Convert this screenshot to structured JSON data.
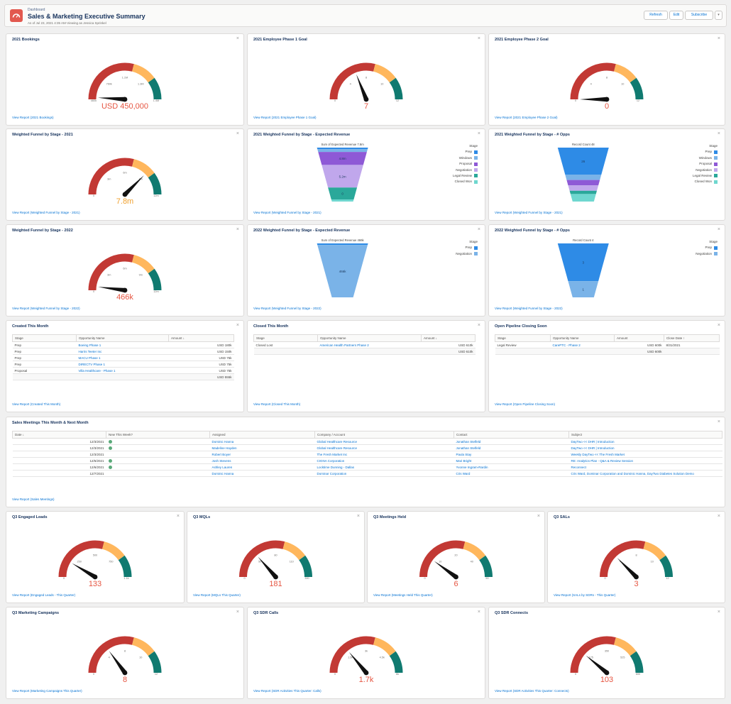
{
  "header": {
    "subtitle": "Dashboard",
    "title": "Sales & Marketing Executive Summary",
    "meta": "As of Jul 23, 2021 4:35 AM·Viewing as Jessica Sprinkel",
    "refresh": "Refresh",
    "edit": "Edit",
    "subscribe": "Subscribe",
    "more_icon": "chevron-down-icon"
  },
  "colors": {
    "red": "#c23934",
    "yellow": "#ffb75d",
    "teal": "#107a70",
    "needle": "#111111",
    "link": "#0070d2",
    "value_red": "#e65541",
    "value_orange": "#f0a12f"
  },
  "gauges": {
    "g1": {
      "title": "2021 Bookings",
      "ticks": [
        "460k",
        "760k",
        "1.1M",
        "1.3M",
        "1.4M"
      ],
      "value": "USD 450,000",
      "link": "View Report (2021 Bookings)",
      "needle": 0.02,
      "color": "red"
    },
    "g2": {
      "title": "2021 Employee Phase 1 Goal",
      "ticks": [
        "0",
        "4",
        "8",
        "10",
        "12"
      ],
      "value": "7",
      "link": "View Report (2021 Employee Phase 1 Goal)",
      "needle": 0.38,
      "color": "red"
    },
    "g3": {
      "title": "2021 Employee Phase 2 Goal",
      "ticks": [
        "0",
        "4",
        "8",
        "10",
        "12"
      ],
      "value": "0",
      "link": "View Report (2021 Employee Phase 2 Goal)",
      "needle": 0.0,
      "color": "red"
    },
    "g4": {
      "title": "Weighted Funnel by Stage - 2021",
      "ticks": [
        "0",
        "3m",
        "6m",
        "9m",
        "12m"
      ],
      "value": "7.8m",
      "link": "View Report (Weighted Funnel by Stage - 2021)",
      "needle": 0.75,
      "color": "orange"
    },
    "g5": {
      "title": "Weighted Funnel by Stage - 2022",
      "ticks": [
        "0",
        "3m",
        "6m",
        "9m",
        "12m"
      ],
      "value": "466k",
      "link": "View Report (Weighted Funnel by Stage - 2022)",
      "needle": 0.04,
      "color": "red"
    },
    "g6": {
      "title": "Q3 Engaged Leads",
      "ticks": [
        "0",
        "250",
        "500",
        "750",
        "1.1k"
      ],
      "value": "133",
      "link": "View Report (Engaged Leads - This Quarter)",
      "needle": 0.17,
      "color": "red"
    },
    "g7": {
      "title": "Q3 MQLs",
      "ticks": [
        "0",
        "50",
        "80",
        "110",
        "300"
      ],
      "value": "181",
      "link": "View Report (MQLs This Quarter)",
      "needle": 0.27,
      "color": "red"
    },
    "g8": {
      "title": "Q3 Meetings Held",
      "ticks": [
        "0",
        "10",
        "20",
        "40",
        "50"
      ],
      "value": "6",
      "link": "View Report (Meetings Held This Quarter)",
      "needle": 0.2,
      "color": "red"
    },
    "g9": {
      "title": "Q3 SALs",
      "ticks": [
        "0",
        "4",
        "8",
        "10",
        "12"
      ],
      "value": "3",
      "link": "View Report (SALs by SDRs - This Quarter)",
      "needle": 0.25,
      "color": "red"
    },
    "g10": {
      "title": "Q3 Marketing Campaigns",
      "ticks": [
        "0",
        "4",
        "8",
        "10",
        "12"
      ],
      "value": "8",
      "link": "View Report (Marketing Campaigns This Quarter)",
      "needle": 0.3,
      "color": "red"
    },
    "g11": {
      "title": "Q3 SDR Calls",
      "ticks": [
        "0",
        "1.5k",
        "3k",
        "4.5k",
        "6k"
      ],
      "value": "1.7k",
      "link": "View Report (SDR Activities This Quarter: Calls)",
      "needle": 0.28,
      "color": "red"
    },
    "g12": {
      "title": "Q3 SDR Connects",
      "ticks": [
        "0",
        "175",
        "350",
        "525",
        "600"
      ],
      "value": "103",
      "link": "View Report (SDR Activities This Quarter: Connects)",
      "needle": 0.22,
      "color": "red"
    }
  },
  "funnels": {
    "f1": {
      "title": "2021 Weighted Funnel by Stage - Expected Revenue",
      "heading": "Sum of Expected Revenue  7.8m",
      "legend_title": "Stage",
      "legend": [
        {
          "label": "Prep",
          "color": "#2e8be6"
        },
        {
          "label": "Windows",
          "color": "#7ab3e8"
        },
        {
          "label": "Proposal",
          "color": "#8e59d6"
        },
        {
          "label": "Negotiation",
          "color": "#c0a7ec"
        },
        {
          "label": "Legal Review",
          "color": "#2aa89a"
        },
        {
          "label": "Closed Won",
          "color": "#6fd7cf"
        }
      ],
      "segments": [
        {
          "label": "",
          "color": "#2e8be6",
          "h": 0.03
        },
        {
          "label": "",
          "color": "#7ab3e8",
          "h": 0.05
        },
        {
          "label": "4.8m",
          "color": "#8e59d6",
          "h": 0.24
        },
        {
          "label": "5.2m",
          "color": "#c0a7ec",
          "h": 0.42
        },
        {
          "label": "0",
          "color": "#2aa89a",
          "h": 0.22
        },
        {
          "label": "",
          "color": "#6fd7cf",
          "h": 0.04
        }
      ],
      "link": "View Report (Weighted Funnel by Stage - 2021)"
    },
    "f2": {
      "title": "2021 Weighted Funnel by Stage - # Opps",
      "heading": "Record Count  48",
      "legend_title": "Stage",
      "legend": [
        {
          "label": "Prep",
          "color": "#2e8be6"
        },
        {
          "label": "Windows",
          "color": "#7ab3e8"
        },
        {
          "label": "Proposal",
          "color": "#8e59d6"
        },
        {
          "label": "Negotiation",
          "color": "#c0a7ec"
        },
        {
          "label": "Legal Review",
          "color": "#2aa89a"
        },
        {
          "label": "Closed Won",
          "color": "#6fd7cf"
        }
      ],
      "segments": [
        {
          "label": "26",
          "color": "#2e8be6",
          "h": 0.5
        },
        {
          "label": "",
          "color": "#7ab3e8",
          "h": 0.1
        },
        {
          "label": "",
          "color": "#8e59d6",
          "h": 0.1
        },
        {
          "label": "",
          "color": "#c0a7ec",
          "h": 0.1
        },
        {
          "label": "",
          "color": "#2aa89a",
          "h": 0.06
        },
        {
          "label": "",
          "color": "#6fd7cf",
          "h": 0.14
        }
      ],
      "link": "View Report (Weighted Funnel by Stage - 2021)"
    },
    "f3": {
      "title": "2022 Weighted Funnel by Stage - Expected Revenue",
      "heading": "Sum of Expected Revenue  466k",
      "legend_title": "Stage",
      "legend": [
        {
          "label": "Prep",
          "color": "#2e8be6"
        },
        {
          "label": "Negotiation",
          "color": "#7ab3e8"
        }
      ],
      "segments": [
        {
          "label": "",
          "color": "#2e8be6",
          "h": 0.03
        },
        {
          "label": "466k",
          "color": "#7ab3e8",
          "h": 0.97
        }
      ],
      "link": "View Report (Weighted Funnel by Stage - 2022)"
    },
    "f4": {
      "title": "2022 Weighted Funnel by Stage - # Opps",
      "heading": "Record Count  4",
      "legend_title": "Stage",
      "legend": [
        {
          "label": "Prep",
          "color": "#2e8be6"
        },
        {
          "label": "Negotiation",
          "color": "#7ab3e8"
        }
      ],
      "segments": [
        {
          "label": "3",
          "color": "#2e8be6",
          "h": 0.7
        },
        {
          "label": "1",
          "color": "#7ab3e8",
          "h": 0.3
        }
      ],
      "link": "View Report (Weighted Funnel by Stage - 2022)"
    }
  },
  "tables": {
    "created": {
      "title": "Created This Month",
      "cols": [
        "Stage",
        "Opportunity Name",
        "Amount ↓"
      ],
      "rows": [
        [
          "Prep",
          "Boeing Phase 1",
          "USD 180k"
        ],
        [
          "Prep",
          "Harris Teeter Inc",
          "USD 150k"
        ],
        [
          "Prep",
          "MACU Phase 1",
          "USD 75k"
        ],
        [
          "Prep",
          "DIRECTV Phase 1",
          "USD 75k"
        ],
        [
          "Proposal",
          "Villa Healthcare - Phase 1",
          "USD 75k"
        ]
      ],
      "total": "USD 555k",
      "link": "View Report (Created This Month)"
    },
    "closed": {
      "title": "Closed This Month",
      "cols": [
        "Stage",
        "Opportunity Name",
        "Amount ↓"
      ],
      "rows": [
        [
          "Closed Lost",
          "American Health Partners Phase 2",
          "USD 610k"
        ]
      ],
      "total": "USD 610k",
      "link": "View Report (Closed This Month)"
    },
    "pipeline": {
      "title": "Open Pipeline Closing Soon",
      "cols": [
        "Stage",
        "Opportunity Name",
        "Amount",
        "Close Date ↑"
      ],
      "rows": [
        [
          "Legal Review",
          "CarePTC - Phase 2",
          "USD 600k",
          "8/31/2021"
        ]
      ],
      "total": "USD 600k",
      "link": "View Report (Open Pipeline Closing Soon)"
    },
    "meetings": {
      "title": "Sales Meetings This Month & Next Month",
      "cols": [
        "Date ↓",
        "New This Week?",
        "Assigned",
        "Company / Account",
        "Contact",
        "Subject"
      ],
      "rows": [
        [
          "12/3/2021",
          "✓",
          "Dominic Hanna",
          "Global Healthcare Resource",
          "Jonathan Stelfeld",
          "DayTwo << DHR | Introduction"
        ],
        [
          "12/3/2021",
          "✓",
          "Madeline Hayden",
          "Global Healthcare Resource",
          "Jonathan Stelfeld",
          "DayTwo << DHR | Introduction"
        ],
        [
          "12/3/2021",
          "",
          "Robert Boyer",
          "The Fresh Market Inc",
          "Paula Stay",
          "Weekly DayTwo << The Fresh Market"
        ],
        [
          "12/6/2021",
          "✓",
          "Josh Stevens",
          "CIGNA Corporation",
          "Mari Bright",
          "RE: Analytics Plan - Q&A & Review Session"
        ],
        [
          "12/6/2021",
          "✓",
          "Ashley Lauren",
          "Locktime Dunning - Dallas",
          "Yvonne Ingram-Rardin",
          "Reconnect"
        ],
        [
          "12/7/2021",
          "",
          "Dominic Hanna",
          "Dominar Corporation",
          "Cris Ward",
          "Cris Ward, Dominar Corporation and Dominic Hanna, DayTwo Diabetes Solution Demo"
        ]
      ],
      "link": "View Report (Sales Meetings)"
    }
  }
}
